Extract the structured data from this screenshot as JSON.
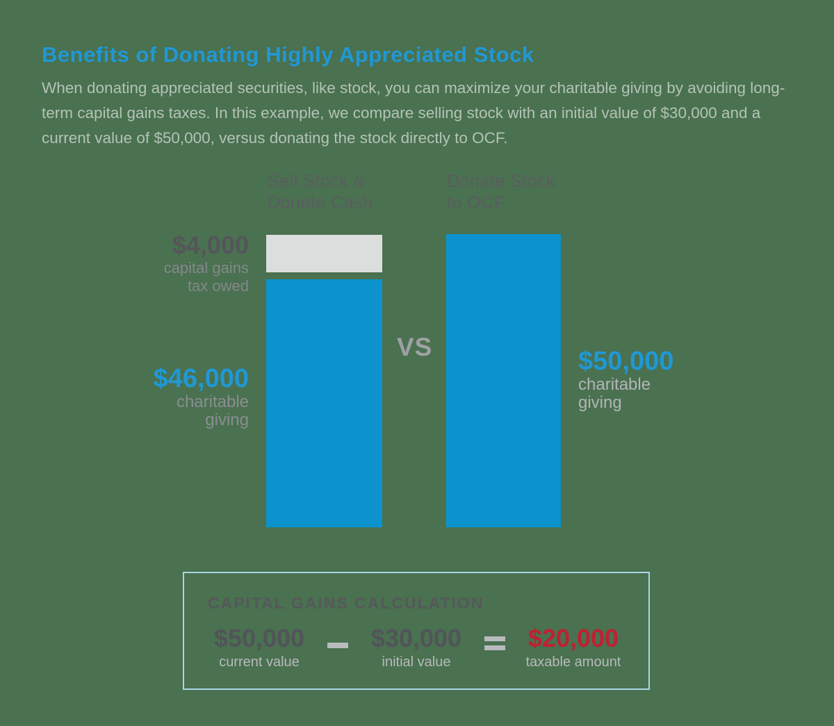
{
  "page": {
    "title": "Benefits of Donating Highly Appreciated Stock",
    "intro": "When donating appreciated securities, like stock, you can maximize your charitable giving by avoiding long-term capital gains taxes. In this example, we compare selling stock with an initial value of $30,000 and a current value of $50,000, versus donating the stock directly to OCF.",
    "background_color": "#4a7150"
  },
  "colors": {
    "accent_blue": "#2098d5",
    "bar_blue": "#0c93cd",
    "bar_gray": "#dcdddd",
    "dark_gray_text": "#54565a",
    "mid_gray_text": "#9ea1a4",
    "result_red": "#bf2032",
    "calc_box_border": "#a9d6ea"
  },
  "comparison": {
    "vs": "VS",
    "left_column": {
      "header_line1": "Sell Stock &",
      "header_line2": "Donate Cash",
      "tax_value": "$4,000",
      "tax_label_line1": "capital gains",
      "tax_label_line2": "tax owed",
      "giving_value": "$46,000",
      "giving_label_line1": "charitable",
      "giving_label_line2": "giving"
    },
    "right_column": {
      "header_line1": "Donate Stock",
      "header_line2": "to OCF",
      "giving_value": "$50,000",
      "giving_label_line1": "charitable",
      "giving_label_line2": "giving"
    }
  },
  "calculation": {
    "heading": "CAPITAL GAINS CALCULATION",
    "minuend_value": "$50,000",
    "minuend_label": "current value",
    "subtrahend_value": "$30,000",
    "subtrahend_label": "initial value",
    "result_value": "$20,000",
    "result_label": "taxable amount"
  },
  "chart_data": {
    "type": "bar",
    "title": "Benefits of Donating Highly Appreciated Stock",
    "categories": [
      "Sell Stock & Donate Cash",
      "Donate Stock to OCF"
    ],
    "series": [
      {
        "name": "capital gains tax owed",
        "values": [
          4000,
          0
        ],
        "color": "#dcdddd"
      },
      {
        "name": "charitable giving",
        "values": [
          46000,
          50000
        ],
        "color": "#0c93cd"
      }
    ],
    "stacked": true,
    "orientation": "vertical",
    "ylim": [
      0,
      50000
    ],
    "grid": false,
    "legend_position": "none",
    "annotations": [
      "$4,000 capital gains tax owed",
      "$46,000 charitable giving",
      "VS",
      "$50,000 charitable giving",
      "CAPITAL GAINS CALCULATION: $50,000 current value − $30,000 initial value = $20,000 taxable amount"
    ]
  }
}
